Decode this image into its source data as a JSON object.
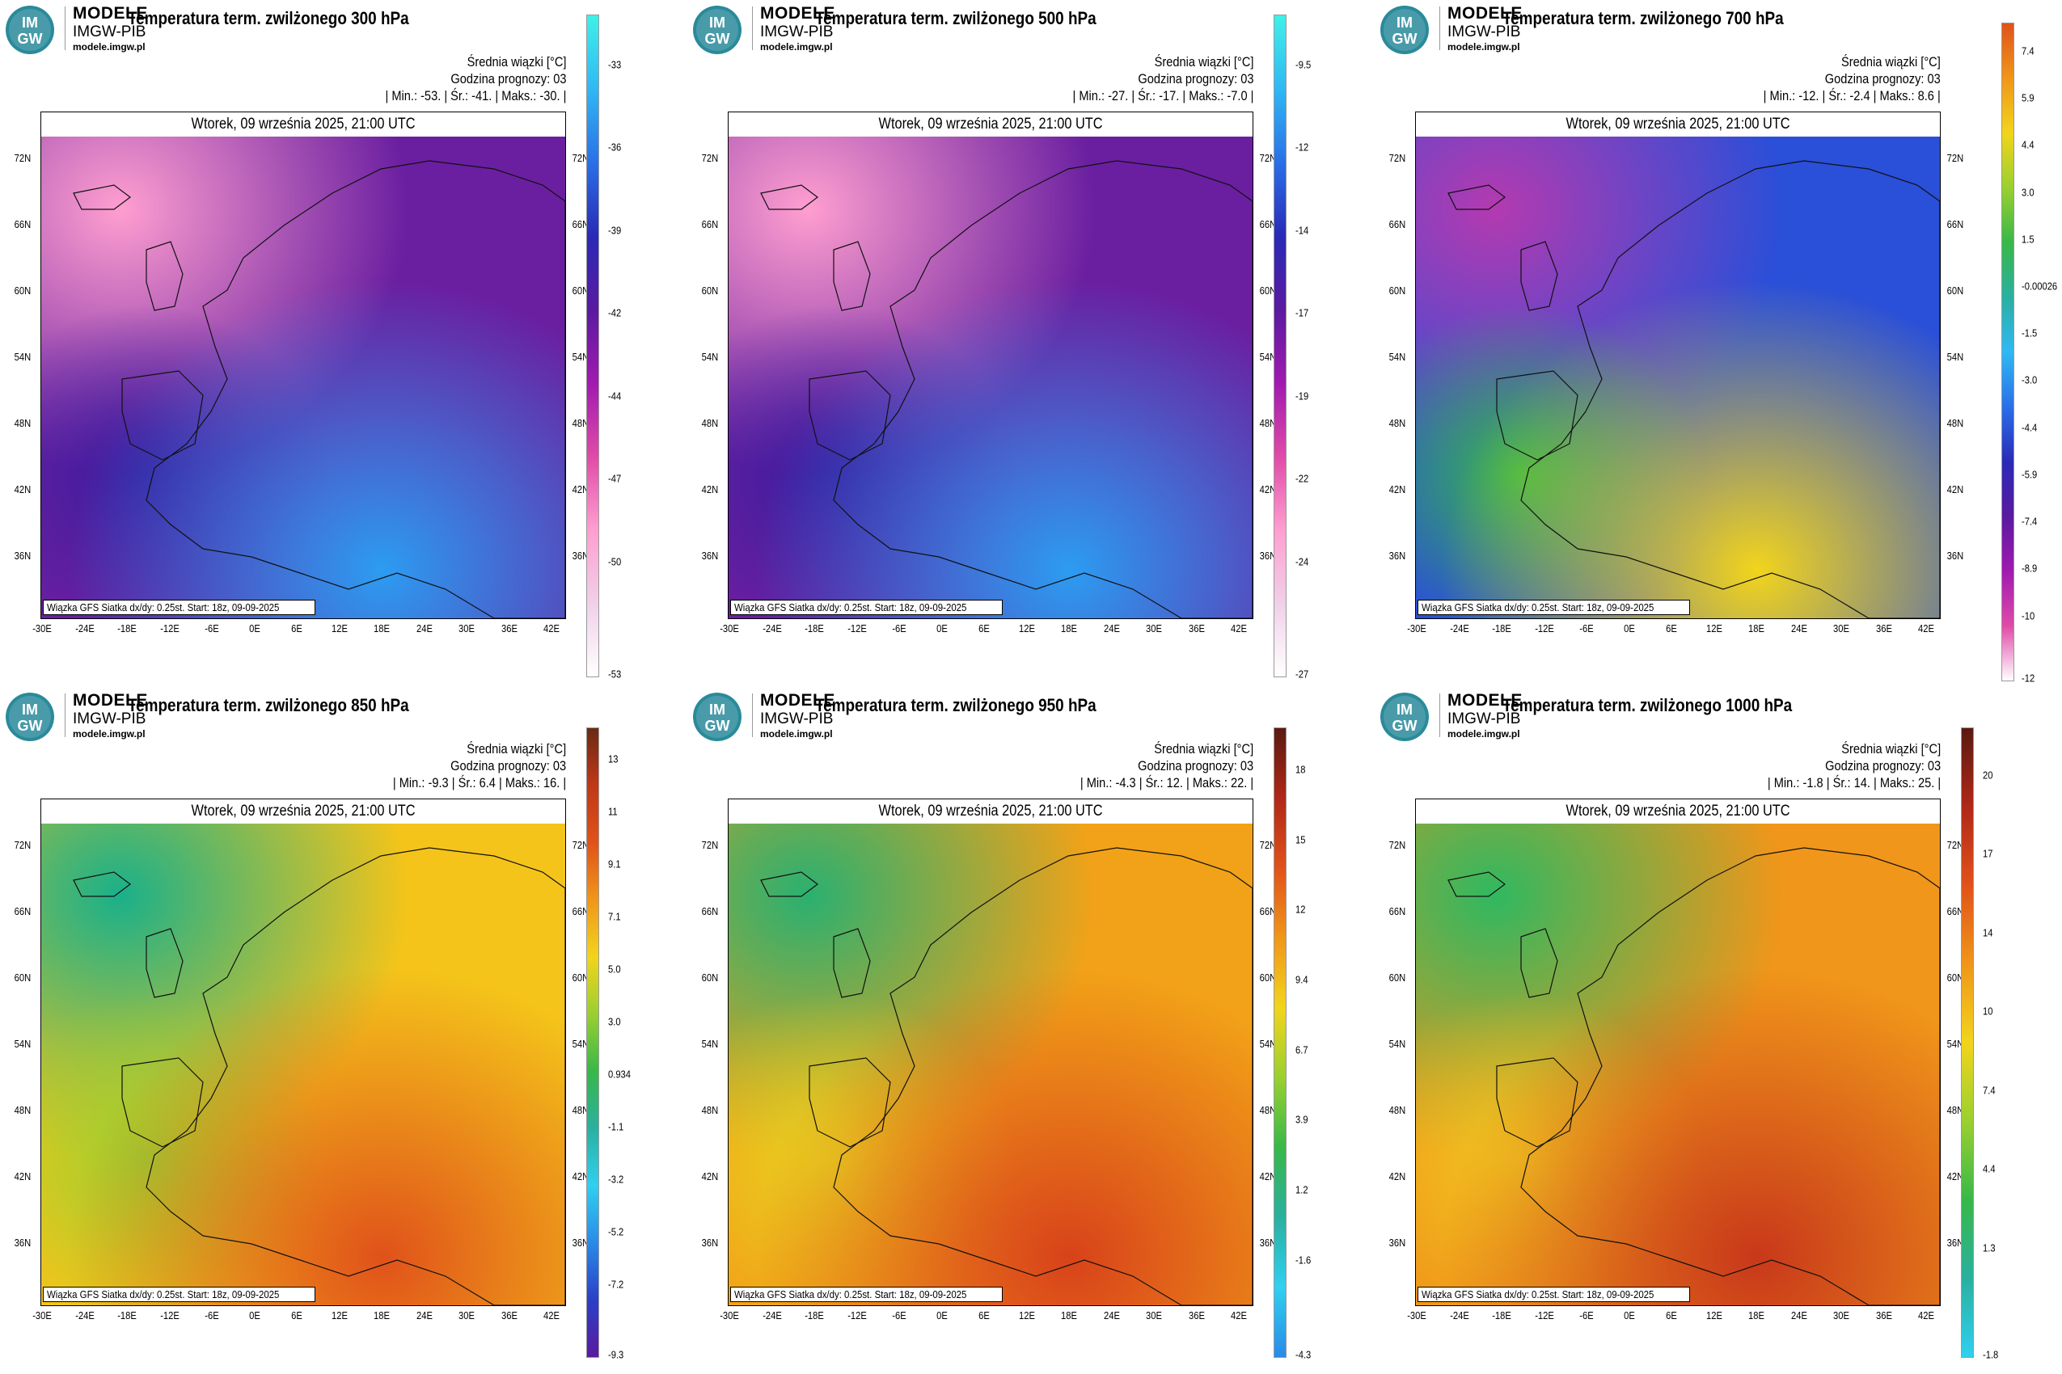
{
  "logo": {
    "line1": "MODELE",
    "line2": "IMGW-PIB",
    "line3": "modele.imgw.pl",
    "mark": "IM GW"
  },
  "common": {
    "mean_label": "Średnia wiązki [°C]",
    "forecast_label": "Godzina prognozy: 03",
    "date": "Wtorek, 09 września 2025, 21:00 UTC",
    "footnote": "Wiązka GFS Siatka dx/dy: 0.25st. Start: 18z, 09-09-2025",
    "lat_labels_left": [
      "72N",
      "66N",
      "60N",
      "54N",
      "48N",
      "42N",
      "36N"
    ],
    "lat_labels_right": [
      "72N",
      "66N",
      "60N",
      "54N",
      "48N",
      "42N",
      "36N"
    ],
    "lon_labels": [
      "-30E",
      "-24E",
      "-18E",
      "-12E",
      "-6E",
      "0E",
      "6E",
      "12E",
      "18E",
      "24E",
      "30E",
      "36E",
      "42E"
    ]
  },
  "panels": [
    {
      "title": "Temperatura term. zwilżonego 300 hPa",
      "minmax": "| Min.: -53. | Śr.: -41. | Maks.: -30. |",
      "scale": [
        "-33",
        "-36",
        "-39",
        "-42",
        "-44",
        "-47",
        "-50",
        "-53"
      ],
      "colors": {
        "base": "#6a1fa0",
        "cold": "#ff9ed0",
        "warm": "#2c9cf2",
        "mid": "#3a1c9e"
      }
    },
    {
      "title": "Temperatura term. zwilżonego 500 hPa",
      "minmax": "| Min.: -27. | Śr.: -17. | Maks.: -7.0 |",
      "scale": [
        "-9.5",
        "-12",
        "-14",
        "-17",
        "-19",
        "-22",
        "-24",
        "-27"
      ],
      "colors": {
        "base": "#6a1fa0",
        "cold": "#ff9ed0",
        "warm": "#2c9cf2",
        "mid": "#3a1c9e"
      }
    },
    {
      "title": "Temperatura term. zwilżonego 700 hPa",
      "minmax": "| Min.: -12. | Śr.: -2.4 | Maks.: 8.6 |",
      "scale": [
        "7.4",
        "5.9",
        "4.4",
        "3.0",
        "1.5",
        "-0.00026",
        "-1.5",
        "-3.0",
        "-4.4",
        "-5.9",
        "-7.4",
        "-8.9",
        "-10",
        "-12"
      ],
      "colors": {
        "base": "#2a4fd8",
        "cold": "#b43ab0",
        "warm": "#f2d41c",
        "mid": "#38b848"
      }
    },
    {
      "title": "Temperatura term. zwilżonego 850 hPa",
      "minmax": "| Min.: -9.3 | Śr.: 6.4 | Maks.: 16. |",
      "scale": [
        "13",
        "11",
        "9.1",
        "7.1",
        "5.0",
        "3.0",
        "0.934",
        "-1.1",
        "-3.2",
        "-5.2",
        "-7.2",
        "-9.3"
      ],
      "colors": {
        "base": "#f4c41a",
        "cold": "#1ab08a",
        "warm": "#e0521a",
        "mid": "#9ad030"
      }
    },
    {
      "title": "Temperatura term. zwilżonego 950 hPa",
      "minmax": "| Min.: -4.3 | Śr.: 12. | Maks.: 22. |",
      "scale": [
        "18",
        "15",
        "12",
        "9.4",
        "6.7",
        "3.9",
        "1.2",
        "-1.6",
        "-4.3"
      ],
      "colors": {
        "base": "#f2a218",
        "cold": "#2ab070",
        "warm": "#d8421a",
        "mid": "#e8d420"
      }
    },
    {
      "title": "Temperatura term. zwilżonego 1000 hPa",
      "minmax": "| Min.: -1.8 | Śr.: 14. | Maks.: 25. |",
      "scale": [
        "20",
        "17",
        "14",
        "10",
        "7.4",
        "4.4",
        "1.3",
        "-1.8"
      ],
      "colors": {
        "base": "#f0961a",
        "cold": "#30b860",
        "warm": "#c8381a",
        "mid": "#f2c820"
      }
    }
  ]
}
